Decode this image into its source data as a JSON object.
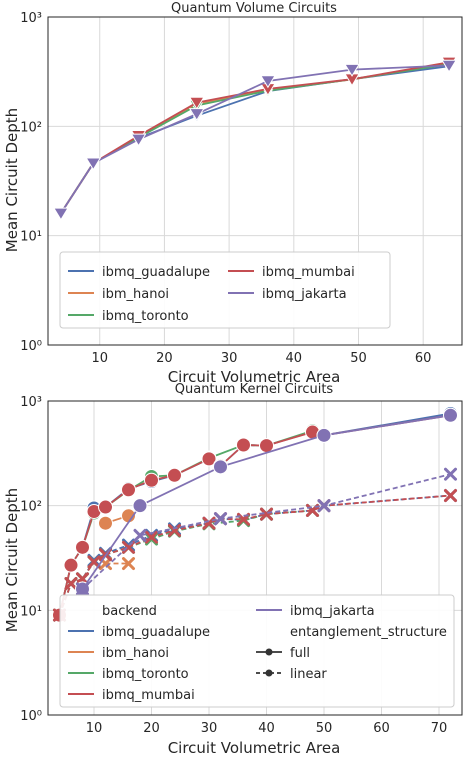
{
  "colors": {
    "ibmq_guadalupe": "#4c72b0",
    "ibm_hanoi": "#dd8452",
    "ibmq_toronto": "#55a868",
    "ibmq_mumbai": "#c44e52",
    "ibmq_jakarta": "#8172b3"
  },
  "chart_data": [
    {
      "type": "line",
      "title": "Quantum Volume Circuits",
      "xlabel": "Circuit Volumetric Area",
      "ylabel": "Mean Circuit Depth",
      "yscale": "log",
      "xlim": [
        2,
        66
      ],
      "ylim": [
        1,
        1000
      ],
      "xticks": [
        10,
        20,
        30,
        40,
        50,
        60
      ],
      "yticks": [
        1,
        10,
        100,
        1000
      ],
      "ytick_labels": [
        "10⁰",
        "10¹",
        "10²",
        "10³"
      ],
      "grid": true,
      "legend": {
        "placement": "lower-left",
        "columns": 2,
        "entries": [
          "ibmq_guadalupe",
          "ibm_hanoi",
          "ibmq_toronto",
          "ibmq_mumbai",
          "ibmq_jakarta"
        ]
      },
      "marker": "down-triangle",
      "series": [
        {
          "name": "ibmq_guadalupe",
          "x": [
            4,
            9,
            16,
            25,
            36,
            49,
            64
          ],
          "y": [
            16,
            46,
            78,
            125,
            210,
            270,
            355
          ]
        },
        {
          "name": "ibm_hanoi",
          "x": [
            4,
            9,
            16,
            25,
            36,
            49,
            64
          ],
          "y": [
            16,
            46,
            80,
            160,
            215,
            268,
            375
          ]
        },
        {
          "name": "ibmq_toronto",
          "x": [
            4,
            9,
            16,
            25,
            36,
            49,
            64
          ],
          "y": [
            16,
            46,
            79,
            155,
            212,
            270,
            370
          ]
        },
        {
          "name": "ibmq_mumbai",
          "x": [
            4,
            9,
            16,
            25,
            36,
            49,
            64
          ],
          "y": [
            16,
            46,
            82,
            165,
            220,
            270,
            385
          ]
        },
        {
          "name": "ibmq_jakarta",
          "x": [
            4,
            9,
            16,
            25,
            36,
            49,
            64
          ],
          "y": [
            16,
            46,
            76,
            130,
            260,
            330,
            360
          ]
        }
      ]
    },
    {
      "type": "line",
      "title": "Quantum Kernel Circuits",
      "xlabel": "Circuit Volumetric Area",
      "ylabel": "Mean Circuit Depth",
      "yscale": "log",
      "xlim": [
        2,
        74
      ],
      "ylim": [
        1,
        1000
      ],
      "xticks": [
        10,
        20,
        30,
        40,
        50,
        60,
        70
      ],
      "yticks": [
        1,
        10,
        100,
        1000
      ],
      "ytick_labels": [
        "10⁰",
        "10¹",
        "10²",
        "10³"
      ],
      "grid": true,
      "legend": {
        "placement": "lower-left",
        "columns": 2,
        "entries": [
          {
            "label": "backend",
            "kind": "header"
          },
          {
            "label": "ibmq_guadalupe",
            "kind": "series"
          },
          {
            "label": "ibm_hanoi",
            "kind": "series"
          },
          {
            "label": "ibmq_toronto",
            "kind": "series"
          },
          {
            "label": "ibmq_mumbai",
            "kind": "series"
          },
          {
            "label": "ibmq_jakarta",
            "kind": "series"
          },
          {
            "label": "entanglement_structure",
            "kind": "header"
          },
          {
            "label": "full",
            "kind": "style-solid"
          },
          {
            "label": "linear",
            "kind": "style-dashed"
          }
        ]
      },
      "series": [
        {
          "name": "ibmq_guadalupe",
          "style": "full",
          "marker": "circle",
          "x": [
            4,
            6,
            8,
            10,
            12,
            16,
            20,
            24,
            30,
            32,
            36,
            40,
            48,
            50,
            72
          ],
          "y": [
            9,
            27,
            40,
            95,
            97,
            145,
            170,
            195,
            280,
            240,
            380,
            375,
            510,
            470,
            760
          ]
        },
        {
          "name": "ibmq_guadalupe",
          "style": "linear",
          "marker": "x",
          "x": [
            4,
            6,
            8,
            10,
            12,
            16,
            20,
            24,
            30,
            32,
            36,
            40,
            48,
            50,
            72
          ],
          "y": [
            9,
            18,
            20,
            30,
            35,
            42,
            52,
            60,
            68,
            75,
            73,
            83,
            90,
            100,
            125
          ]
        },
        {
          "name": "ibm_hanoi",
          "style": "full",
          "marker": "circle",
          "x": [
            12,
            16
          ],
          "y": [
            68,
            80
          ]
        },
        {
          "name": "ibm_hanoi",
          "style": "linear",
          "marker": "x",
          "x": [
            12,
            16
          ],
          "y": [
            28,
            28
          ]
        },
        {
          "name": "ibmq_toronto",
          "style": "full",
          "marker": "circle",
          "x": [
            4,
            6,
            8,
            10,
            12,
            16,
            20,
            24,
            30,
            36,
            40,
            48
          ],
          "y": [
            9,
            27,
            40,
            85,
            97,
            140,
            190,
            195,
            285,
            380,
            375,
            520
          ]
        },
        {
          "name": "ibmq_toronto",
          "style": "linear",
          "marker": "x",
          "x": [
            4,
            6,
            8,
            10,
            12,
            16,
            20,
            24,
            30,
            36,
            40,
            48
          ],
          "y": [
            9,
            18,
            20,
            29,
            34,
            40,
            48,
            57,
            67,
            72,
            83,
            90
          ]
        },
        {
          "name": "ibmq_mumbai",
          "style": "full",
          "marker": "circle",
          "x": [
            4,
            6,
            8,
            10,
            12,
            16,
            20,
            24,
            30,
            32,
            36,
            40,
            48,
            50,
            72
          ],
          "y": [
            9,
            27,
            40,
            88,
            97,
            142,
            175,
            195,
            280,
            240,
            380,
            375,
            505,
            470,
            730
          ]
        },
        {
          "name": "ibmq_mumbai",
          "style": "linear",
          "marker": "x",
          "x": [
            4,
            6,
            8,
            10,
            12,
            16,
            20,
            24,
            30,
            32,
            36,
            40,
            48,
            50,
            72
          ],
          "y": [
            9,
            18,
            20,
            29,
            34,
            40,
            50,
            58,
            68,
            75,
            74,
            83,
            90,
            100,
            125
          ]
        },
        {
          "name": "ibmq_jakarta",
          "style": "full",
          "marker": "circle",
          "x": [
            8,
            18,
            32,
            50,
            72
          ],
          "y": [
            16,
            100,
            235,
            470,
            730
          ]
        },
        {
          "name": "ibmq_jakarta",
          "style": "linear",
          "marker": "x",
          "x": [
            8,
            18,
            32,
            50,
            72
          ],
          "y": [
            16,
            52,
            75,
            100,
            200
          ]
        }
      ]
    }
  ]
}
